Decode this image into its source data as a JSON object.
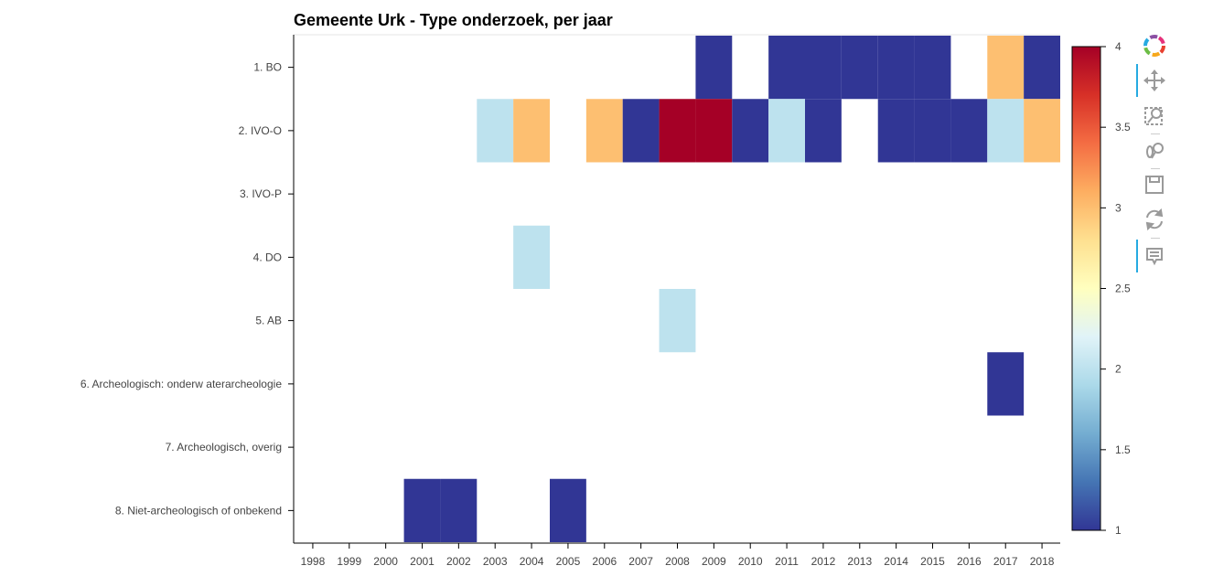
{
  "chart_data": {
    "type": "heatmap",
    "title": "Gemeente Urk - Type onderzoek, per jaar",
    "xlabel": "",
    "ylabel": "",
    "years": [
      "1998",
      "1999",
      "2000",
      "2001",
      "2002",
      "2003",
      "2004",
      "2005",
      "2006",
      "2007",
      "2008",
      "2009",
      "2010",
      "2011",
      "2012",
      "2013",
      "2014",
      "2015",
      "2016",
      "2017",
      "2018"
    ],
    "categories": [
      "1. BO",
      "2. IVO-O",
      "3. IVO-P",
      "4. DO",
      "5. AB",
      "6. Archeologisch: onderw aterarcheologie",
      "7. Archeologisch, overig",
      "8. Niet-archeologisch of onbekend"
    ],
    "cells": [
      {
        "category": "1. BO",
        "year": "2009",
        "value": 1
      },
      {
        "category": "1. BO",
        "year": "2011",
        "value": 1
      },
      {
        "category": "1. BO",
        "year": "2012",
        "value": 1
      },
      {
        "category": "1. BO",
        "year": "2013",
        "value": 1
      },
      {
        "category": "1. BO",
        "year": "2014",
        "value": 1
      },
      {
        "category": "1. BO",
        "year": "2015",
        "value": 1
      },
      {
        "category": "1. BO",
        "year": "2017",
        "value": 3
      },
      {
        "category": "1. BO",
        "year": "2018",
        "value": 1
      },
      {
        "category": "2. IVO-O",
        "year": "2003",
        "value": 2
      },
      {
        "category": "2. IVO-O",
        "year": "2004",
        "value": 3
      },
      {
        "category": "2. IVO-O",
        "year": "2006",
        "value": 3
      },
      {
        "category": "2. IVO-O",
        "year": "2007",
        "value": 1
      },
      {
        "category": "2. IVO-O",
        "year": "2008",
        "value": 4
      },
      {
        "category": "2. IVO-O",
        "year": "2009",
        "value": 4
      },
      {
        "category": "2. IVO-O",
        "year": "2010",
        "value": 1
      },
      {
        "category": "2. IVO-O",
        "year": "2011",
        "value": 2
      },
      {
        "category": "2. IVO-O",
        "year": "2012",
        "value": 1
      },
      {
        "category": "2. IVO-O",
        "year": "2014",
        "value": 1
      },
      {
        "category": "2. IVO-O",
        "year": "2015",
        "value": 1
      },
      {
        "category": "2. IVO-O",
        "year": "2016",
        "value": 1
      },
      {
        "category": "2. IVO-O",
        "year": "2017",
        "value": 2
      },
      {
        "category": "2. IVO-O",
        "year": "2018",
        "value": 3
      },
      {
        "category": "4. DO",
        "year": "2004",
        "value": 2
      },
      {
        "category": "5. AB",
        "year": "2008",
        "value": 2
      },
      {
        "category": "6. Archeologisch: onderw aterarcheologie",
        "year": "2017",
        "value": 1
      },
      {
        "category": "8. Niet-archeologisch of onbekend",
        "year": "2001",
        "value": 1
      },
      {
        "category": "8. Niet-archeologisch of onbekend",
        "year": "2002",
        "value": 1
      },
      {
        "category": "8. Niet-archeologisch of onbekend",
        "year": "2005",
        "value": 1
      }
    ],
    "color_range": [
      1,
      4
    ],
    "colorbar_ticks": [
      "1",
      "1.5",
      "2",
      "2.5",
      "3",
      "3.5",
      "4"
    ],
    "palette": [
      "#313695",
      "#4575b4",
      "#74add1",
      "#abd9e9",
      "#e0f3f8",
      "#ffffbf",
      "#fee090",
      "#fdae61",
      "#f46d43",
      "#d73027",
      "#a50026"
    ],
    "legend_position": "right",
    "grid": false
  },
  "toolbar": {
    "tools": [
      {
        "name": "bokeh-logo-icon"
      },
      {
        "name": "pan-icon"
      },
      {
        "name": "box-zoom-icon"
      },
      {
        "name": "wheel-zoom-icon"
      },
      {
        "name": "save-icon"
      },
      {
        "name": "reset-icon"
      },
      {
        "name": "hover-icon"
      }
    ]
  }
}
